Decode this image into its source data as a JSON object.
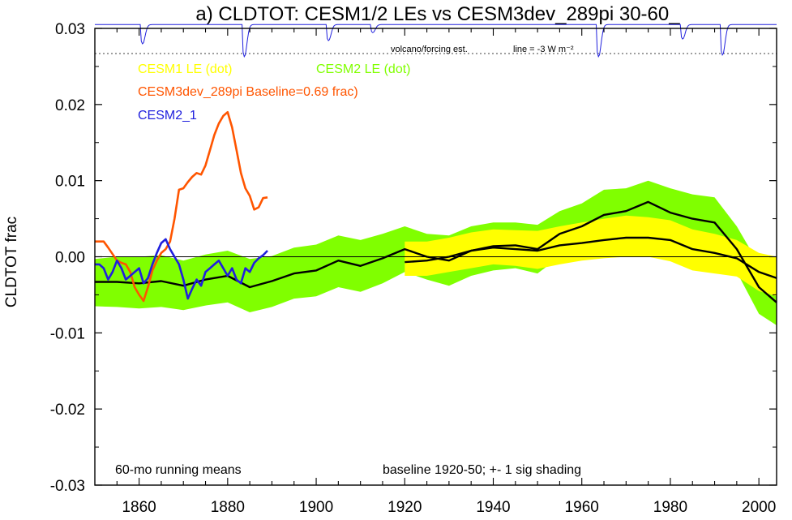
{
  "chart_data": {
    "type": "line",
    "title": "a) CLDTOT: CESM1/2 LEs vs CESM3dev_289pi 30-60_",
    "ylabel": "CLDTOT frac",
    "xlabel": "",
    "xlim": [
      1850,
      2004
    ],
    "ylim": [
      -0.03,
      0.03
    ],
    "x_ticks": [
      1860,
      1880,
      1900,
      1920,
      1940,
      1960,
      1980,
      2000
    ],
    "y_ticks": [
      -0.03,
      -0.02,
      -0.01,
      0.0,
      0.01,
      0.02,
      0.03
    ],
    "y_tick_labels": [
      "-0.03",
      "-0.02",
      "-0.01",
      "0.00",
      "0.01",
      "0.02",
      "0.03"
    ],
    "grid": false,
    "zero_line": true,
    "volcano_panel": {
      "label": "volcano/forcing est.",
      "line_note": "line = -3 W m⁻²",
      "dashed_level": 0.0267,
      "top": 0.0305,
      "events": [
        {
          "year": 1861,
          "depth": 0.6
        },
        {
          "year": 1884,
          "depth": 1.0
        },
        {
          "year": 1903,
          "depth": 0.5
        },
        {
          "year": 1913,
          "depth": 0.25
        },
        {
          "year": 1964,
          "depth": 1.0
        },
        {
          "year": 1983,
          "depth": 0.45
        },
        {
          "year": 1992,
          "depth": 0.95
        }
      ]
    },
    "legend_entries": [
      {
        "label": "CESM1 LE (dot)",
        "color": "#ffff00"
      },
      {
        "label": "CESM2 LE (dot)",
        "color": "#80ff00"
      },
      {
        "label": "CESM3dev_289pi Baseline=0.69 frac)",
        "color": "#ff5500"
      },
      {
        "label": "CESM2_1",
        "color": "#2020dd"
      }
    ],
    "notes": {
      "left": "60-mo running means",
      "right": "baseline 1920-50; +- 1 sig shading"
    },
    "series": [
      {
        "name": "CESM2 LE (dot)",
        "kind": "band",
        "color": "#80ff00",
        "x": [
          1850,
          1855,
          1860,
          1865,
          1870,
          1875,
          1880,
          1885,
          1890,
          1895,
          1900,
          1905,
          1910,
          1915,
          1920,
          1925,
          1930,
          1935,
          1940,
          1945,
          1950,
          1955,
          1960,
          1965,
          1970,
          1975,
          1980,
          1985,
          1990,
          1995,
          2000,
          2004
        ],
        "mean": [
          -0.0033,
          -0.0033,
          -0.0035,
          -0.0032,
          -0.0038,
          -0.003,
          -0.0025,
          -0.004,
          -0.0032,
          -0.0022,
          -0.0018,
          -0.0005,
          -0.0012,
          -0.0002,
          0.001,
          0.0,
          -0.0005,
          0.0008,
          0.0014,
          0.0015,
          0.001,
          0.003,
          0.004,
          0.0055,
          0.006,
          0.0072,
          0.0058,
          0.005,
          0.0045,
          0.001,
          -0.004,
          -0.006
        ],
        "upper": [
          -0.0003,
          0.0,
          0.0,
          0.0002,
          -0.0005,
          0.0003,
          0.0008,
          -0.0003,
          0.0001,
          0.0012,
          0.0016,
          0.0028,
          0.0022,
          0.003,
          0.004,
          0.003,
          0.0028,
          0.004,
          0.0045,
          0.0045,
          0.0042,
          0.006,
          0.007,
          0.0088,
          0.009,
          0.01,
          0.009,
          0.0082,
          0.0078,
          0.004,
          -0.001,
          -0.002
        ],
        "lower": [
          -0.0065,
          -0.0066,
          -0.0068,
          -0.0066,
          -0.007,
          -0.0064,
          -0.006,
          -0.0073,
          -0.0066,
          -0.0055,
          -0.0052,
          -0.004,
          -0.0046,
          -0.0035,
          -0.002,
          -0.003,
          -0.0038,
          -0.0025,
          -0.0018,
          -0.0015,
          -0.0022,
          0.0,
          0.001,
          0.0025,
          0.003,
          0.0042,
          0.0028,
          0.0018,
          0.0012,
          -0.002,
          -0.0075,
          -0.009
        ]
      },
      {
        "name": "CESM1 LE (dot)",
        "kind": "band",
        "color": "#ffff00",
        "x": [
          1920,
          1925,
          1930,
          1935,
          1940,
          1945,
          1950,
          1955,
          1960,
          1965,
          1970,
          1975,
          1980,
          1985,
          1990,
          1995,
          2000,
          2004
        ],
        "mean": [
          -0.0007,
          -0.0005,
          0.0,
          0.0008,
          0.0012,
          0.001,
          0.0008,
          0.0015,
          0.0018,
          0.0022,
          0.0025,
          0.0025,
          0.0022,
          0.001,
          0.0005,
          -0.0002,
          -0.002,
          -0.0028
        ],
        "upper": [
          0.002,
          0.002,
          0.0025,
          0.0032,
          0.0036,
          0.0035,
          0.0034,
          0.004,
          0.0045,
          0.005,
          0.0054,
          0.0052,
          0.0048,
          0.0036,
          0.003,
          0.0022,
          0.0005,
          0.0
        ],
        "lower": [
          -0.0025,
          -0.0025,
          -0.002,
          -0.0015,
          -0.001,
          -0.0012,
          -0.0016,
          -0.001,
          -0.0005,
          -0.0002,
          0.0,
          0.0,
          -0.0006,
          -0.0018,
          -0.0022,
          -0.0026,
          -0.0045,
          -0.0052
        ]
      },
      {
        "name": "CESM3dev_289pi",
        "kind": "line",
        "color": "#ff5500",
        "x": [
          1850,
          1852,
          1853,
          1855,
          1856,
          1857,
          1858,
          1859,
          1860,
          1861,
          1862,
          1863,
          1864,
          1865,
          1866,
          1867,
          1868,
          1869,
          1870,
          1871,
          1872,
          1873,
          1874,
          1875,
          1876,
          1877,
          1878,
          1879,
          1880,
          1881,
          1882,
          1883,
          1884,
          1885,
          1886,
          1887,
          1888,
          1889
        ],
        "values": [
          0.002,
          0.002,
          0.0012,
          -0.0005,
          -0.0008,
          -0.001,
          -0.002,
          -0.004,
          -0.005,
          -0.0058,
          -0.004,
          -0.0018,
          -0.0005,
          0.0005,
          0.001,
          0.002,
          0.005,
          0.0088,
          0.009,
          0.0098,
          0.0105,
          0.011,
          0.0108,
          0.012,
          0.014,
          0.016,
          0.0175,
          0.0185,
          0.019,
          0.017,
          0.014,
          0.011,
          0.009,
          0.008,
          0.0062,
          0.0065,
          0.0077,
          0.0078
        ]
      },
      {
        "name": "CESM2_1",
        "kind": "line",
        "color": "#2020dd",
        "x": [
          1850,
          1851,
          1852,
          1853,
          1854,
          1855,
          1856,
          1857,
          1858,
          1859,
          1860,
          1861,
          1862,
          1863,
          1864,
          1865,
          1866,
          1867,
          1868,
          1869,
          1870,
          1871,
          1872,
          1873,
          1874,
          1875,
          1876,
          1877,
          1878,
          1879,
          1880,
          1881,
          1882,
          1883,
          1884,
          1885,
          1886,
          1887,
          1888,
          1889
        ],
        "values": [
          -0.001,
          -0.001,
          -0.0015,
          -0.003,
          -0.002,
          -0.0005,
          -0.0015,
          -0.003,
          -0.0025,
          -0.002,
          -0.0015,
          -0.0035,
          -0.0028,
          -0.001,
          0.0005,
          0.0018,
          0.0023,
          0.001,
          0.0,
          -0.001,
          -0.003,
          -0.0055,
          -0.0042,
          -0.003,
          -0.0038,
          -0.002,
          -0.0015,
          -0.001,
          -0.0005,
          -0.0015,
          -0.0025,
          -0.0015,
          -0.003,
          -0.0035,
          -0.0015,
          -0.002,
          -0.0008,
          -0.0002,
          0.0002,
          0.0008
        ]
      }
    ]
  }
}
